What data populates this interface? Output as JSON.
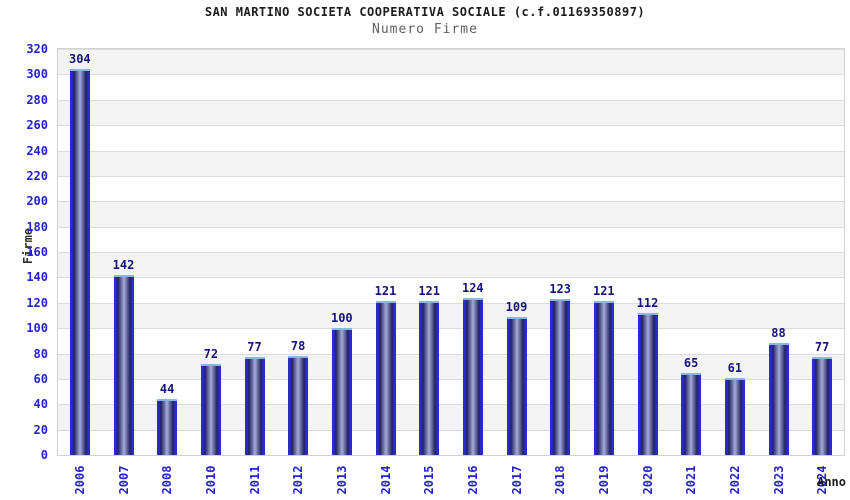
{
  "chart_data": {
    "type": "bar",
    "title": "SAN MARTINO SOCIETA COOPERATIVA SOCIALE (c.f.01169350897)",
    "subtitle": "Numero Firme",
    "xlabel": "Anno",
    "ylabel": "Firme",
    "categories": [
      "2006",
      "2007",
      "2008",
      "2010",
      "2011",
      "2012",
      "2013",
      "2014",
      "2015",
      "2016",
      "2017",
      "2018",
      "2019",
      "2020",
      "2021",
      "2022",
      "2023",
      "2024"
    ],
    "values": [
      304,
      142,
      44,
      72,
      77,
      78,
      100,
      121,
      121,
      124,
      109,
      123,
      121,
      112,
      65,
      61,
      88,
      77
    ],
    "ylim": [
      0,
      320
    ],
    "ytick_step": 20,
    "legend": "none",
    "grid": "horizontal-bands",
    "colors": {
      "axis_tick_blue": "#2323cc",
      "value_label_navy": "#14147a",
      "bar_edge_blue": "#2a2ad0",
      "bar_body_dark": "#23235f",
      "bar_body_light": "#a4aada",
      "bar_cap_light_blue": "#8ab8dc",
      "band_gray": "#f3f3f3",
      "band_white": "#ffffff",
      "gridline": "#dcdcdc",
      "title_text": "#1c1c1c",
      "subtitle_text": "#5f5f5f",
      "axis_title_text": "#2e2e2e"
    }
  }
}
